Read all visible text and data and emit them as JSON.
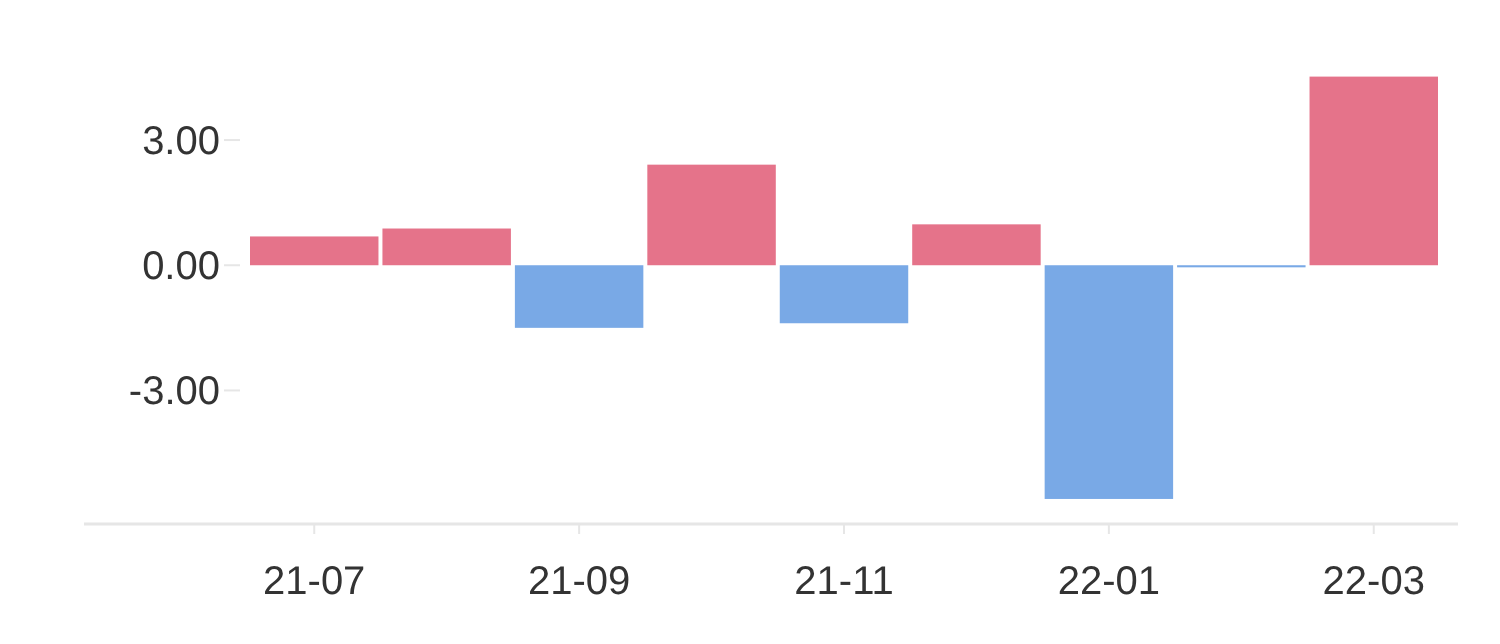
{
  "chart_data": {
    "type": "bar",
    "categories": [
      "21-07",
      null,
      "21-09",
      null,
      "21-11",
      null,
      "22-01",
      null,
      "22-03"
    ],
    "values": [
      0.69,
      0.88,
      -1.5,
      2.41,
      -1.39,
      0.98,
      -5.6,
      -0.05,
      4.52
    ],
    "colors": [
      "#e5738a",
      "#e5738a",
      "#79a9e6",
      "#e5738a",
      "#79a9e6",
      "#e5738a",
      "#79a9e6",
      "#79a9e6",
      "#e5738a"
    ],
    "ylim": [
      -6.2,
      4.52
    ],
    "yticks": [
      {
        "value": 3,
        "label": "3.00"
      },
      {
        "value": 0,
        "label": "0.00"
      },
      {
        "value": -3,
        "label": "-3.00"
      }
    ],
    "grid": false
  }
}
